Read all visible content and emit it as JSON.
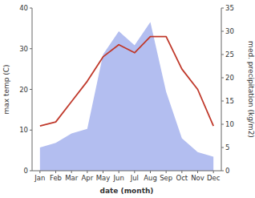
{
  "chart_data": {
    "type": "line",
    "categories": [
      "Jan",
      "Feb",
      "Mar",
      "Apr",
      "May",
      "Jun",
      "Jul",
      "Aug",
      "Sep",
      "Oct",
      "Nov",
      "Dec"
    ],
    "series": [
      {
        "type": "area",
        "axis": "y2",
        "color": "#b3bef0",
        "values": [
          5,
          6,
          8,
          9,
          25,
          30,
          27,
          32,
          17,
          7,
          4,
          3
        ]
      },
      {
        "type": "line",
        "color": "#c0392b",
        "values": [
          11,
          12,
          17,
          22,
          28,
          31,
          29,
          33,
          33,
          25,
          20,
          11
        ]
      }
    ],
    "xlabel": "date (month)",
    "ylabel": "max temp (C)",
    "y2label": "med. precipitation (kg/m2)",
    "ylim": [
      0,
      40
    ],
    "yticks": [
      0,
      10,
      20,
      30,
      40
    ],
    "y2lim": [
      0,
      35
    ],
    "y2ticks": [
      0,
      5,
      10,
      15,
      20,
      25,
      30,
      35
    ],
    "grid": false
  }
}
